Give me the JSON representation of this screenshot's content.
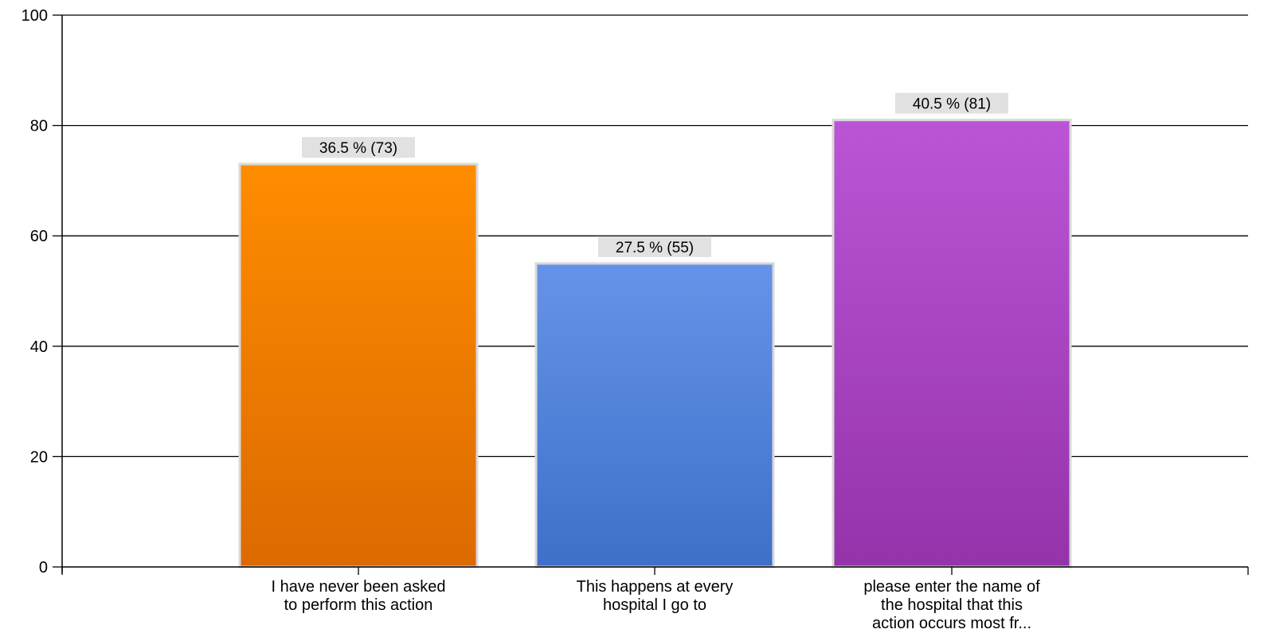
{
  "chart_data": {
    "type": "bar",
    "categories": [
      [
        "I have never been asked",
        "to perform this action"
      ],
      [
        "This happens at every",
        "hospital I go to"
      ],
      [
        "please enter the name of",
        "the hospital that this",
        "action occurs most fr..."
      ]
    ],
    "values": [
      73,
      55,
      81
    ],
    "data_labels": [
      "36.5 % (73)",
      "27.5 % (55)",
      "40.5 % (81)"
    ],
    "bar_colors": [
      {
        "top": "#ff8c00",
        "bottom": "#dc6a00"
      },
      {
        "top": "#6593e8",
        "bottom": "#3f70c9"
      },
      {
        "top": "#bb55d6",
        "bottom": "#9433aa"
      }
    ],
    "ylim": [
      0,
      100
    ],
    "yticks": [
      "0",
      "20",
      "40",
      "60",
      "80",
      "100"
    ],
    "ytick_values": [
      0,
      20,
      40,
      60,
      80,
      100
    ],
    "grid": true,
    "title": "",
    "xlabel": "",
    "ylabel": ""
  }
}
